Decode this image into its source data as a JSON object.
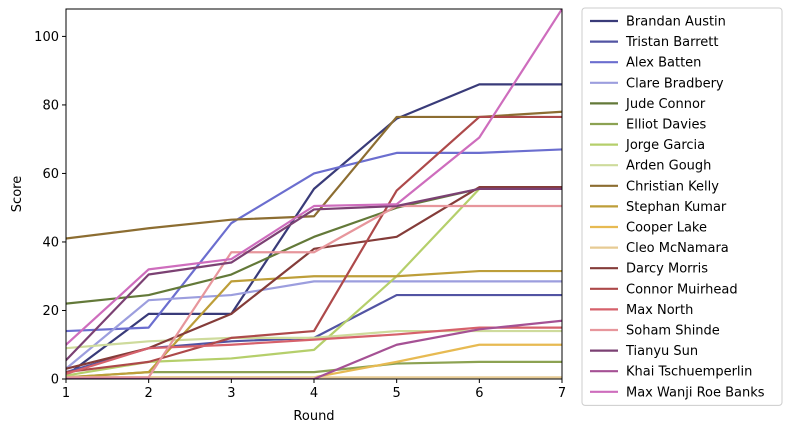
{
  "chart_data": {
    "type": "line",
    "title": "",
    "xlabel": "Round",
    "ylabel": "Score",
    "x": [
      1,
      2,
      3,
      4,
      5,
      6,
      7
    ],
    "xlim": [
      1,
      7
    ],
    "ylim": [
      0,
      108
    ],
    "xticks": [
      1,
      2,
      3,
      4,
      5,
      6,
      7
    ],
    "yticks": [
      0,
      20,
      40,
      60,
      80,
      100
    ],
    "grid": false,
    "legend_position": "outside-right",
    "series": [
      {
        "name": "Brandan Austin",
        "color": "#393b79",
        "values": [
          1,
          19,
          19,
          55.5,
          76,
          86,
          86
        ]
      },
      {
        "name": "Tristan Barrett",
        "color": "#5254a3",
        "values": [
          2,
          9,
          11,
          12,
          24.5,
          24.5,
          24.5
        ]
      },
      {
        "name": "Alex Batten",
        "color": "#6b6ecf",
        "values": [
          14,
          15,
          45.5,
          60,
          66,
          66,
          67
        ]
      },
      {
        "name": "Clare Bradbery",
        "color": "#9c9ede",
        "values": [
          3,
          23,
          24.5,
          28.5,
          28.5,
          28.5,
          28.5
        ]
      },
      {
        "name": "Jude Connor",
        "color": "#637939",
        "values": [
          22,
          24.5,
          30.5,
          41.5,
          50,
          55.5,
          55.5
        ]
      },
      {
        "name": "Elliot Davies",
        "color": "#8ca252",
        "values": [
          0.5,
          2,
          2,
          2,
          4.5,
          5,
          5
        ]
      },
      {
        "name": "Jorge Garcia",
        "color": "#b5cf6b",
        "values": [
          1,
          5,
          6,
          8.5,
          30,
          55.5,
          56
        ]
      },
      {
        "name": "Arden Gough",
        "color": "#cedb9c",
        "values": [
          9,
          11,
          12,
          12,
          14,
          14,
          14
        ]
      },
      {
        "name": "Christian Kelly",
        "color": "#8c6d31",
        "values": [
          41,
          44,
          46.5,
          47.5,
          76.5,
          76.5,
          78
        ]
      },
      {
        "name": "Stephan Kumar",
        "color": "#bd9e39",
        "values": [
          0.5,
          2,
          28.5,
          30,
          30,
          31.5,
          31.5
        ]
      },
      {
        "name": "Cooper Lake",
        "color": "#e7ba52",
        "values": [
          0.5,
          0.5,
          0.5,
          0.5,
          5,
          10,
          10
        ]
      },
      {
        "name": "Cleo McNamara",
        "color": "#e7cb94",
        "values": [
          0.5,
          0.5,
          0.5,
          0.5,
          0.5,
          0.5,
          0.5
        ]
      },
      {
        "name": "Darcy Morris",
        "color": "#843c39",
        "values": [
          3,
          9,
          19,
          38,
          41.5,
          56,
          56
        ]
      },
      {
        "name": "Connor Muirhead",
        "color": "#ad494a",
        "values": [
          2,
          5,
          12,
          14,
          55,
          76.5,
          76.5
        ]
      },
      {
        "name": "Max North",
        "color": "#d6616b",
        "values": [
          1.5,
          9,
          10,
          11.5,
          13,
          15,
          15
        ]
      },
      {
        "name": "Soham Shinde",
        "color": "#e7969c",
        "values": [
          0.5,
          0.5,
          37,
          37,
          50.5,
          50.5,
          50.5
        ]
      },
      {
        "name": "Tianyu Sun",
        "color": "#7b4173",
        "values": [
          5.5,
          30.5,
          34,
          49.5,
          50.5,
          55.5,
          55.5
        ]
      },
      {
        "name": "Khai Tschuemperlin",
        "color": "#a55194",
        "values": [
          0,
          0,
          0,
          0,
          10,
          14.5,
          17
        ]
      },
      {
        "name": "Max Wanji Roe Banks",
        "color": "#ce6dbd",
        "values": [
          10,
          32,
          35,
          50.5,
          51,
          70.5,
          108
        ]
      }
    ]
  }
}
